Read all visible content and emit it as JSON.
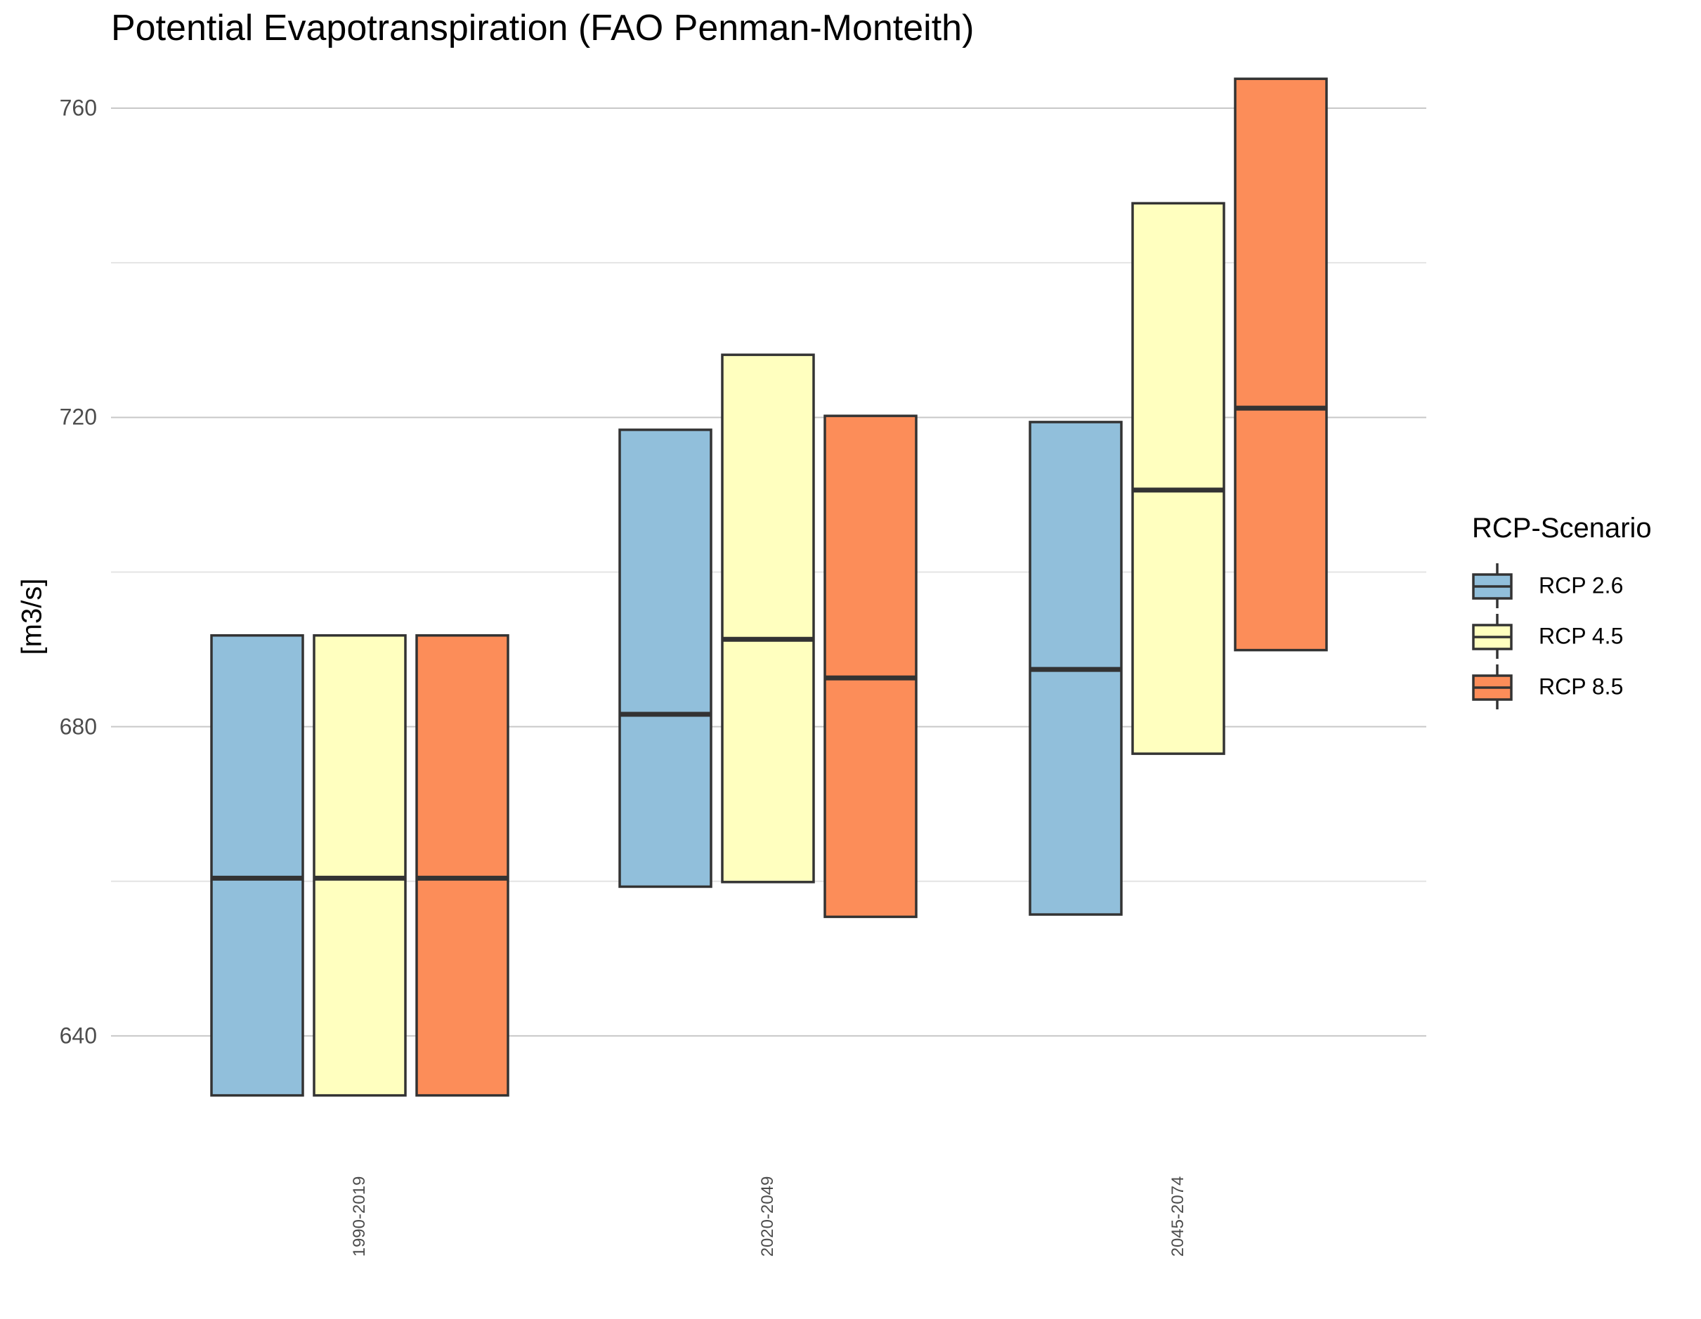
{
  "chart_data": {
    "type": "bar",
    "title": "Potential Evapotranspiration (FAO Penman-Monteith)",
    "xlabel": "",
    "ylabel": "[m3/s]",
    "ylim": [
      625,
      764
    ],
    "yticks": [
      640,
      680,
      720,
      760
    ],
    "grid": true,
    "categories": [
      "1990-2019",
      "2020-2049",
      "2045-2074"
    ],
    "legend": {
      "title": "RCP-Scenario",
      "position": "right"
    },
    "series": [
      {
        "name": "RCP 2.6",
        "color": "#91bfdb",
        "values": [
          {
            "low": 632.3,
            "median": 660.4,
            "high": 691.8
          },
          {
            "low": 659.3,
            "median": 681.6,
            "high": 718.4
          },
          {
            "low": 655.7,
            "median": 687.4,
            "high": 719.4
          }
        ]
      },
      {
        "name": "RCP 4.5",
        "color": "#ffffbf",
        "values": [
          {
            "low": 632.3,
            "median": 660.4,
            "high": 691.8
          },
          {
            "low": 659.9,
            "median": 691.3,
            "high": 728.1
          },
          {
            "low": 676.5,
            "median": 710.6,
            "high": 747.7
          }
        ]
      },
      {
        "name": "RCP 8.5",
        "color": "#fc8d59",
        "values": [
          {
            "low": 632.3,
            "median": 660.4,
            "high": 691.8
          },
          {
            "low": 655.4,
            "median": 686.3,
            "high": 720.2
          },
          {
            "low": 689.9,
            "median": 721.2,
            "high": 763.8
          }
        ]
      }
    ]
  }
}
